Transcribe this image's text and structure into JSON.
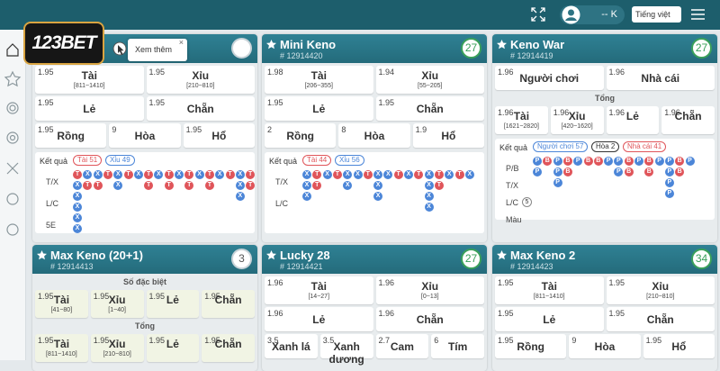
{
  "topbar": {
    "user": "-- K",
    "language": "Tiếng việt"
  },
  "logo": "123BET",
  "tooltip": "Xem thêm",
  "bead_colors": {
    "T": "#e0555a",
    "X": "#4c86d8",
    "P": "#4c86d8",
    "B": "#e0555a"
  },
  "cards": [
    {
      "timer": "",
      "timer_color": "#c9d3d8",
      "sections": [
        {
          "rows": [
            [
              {
                "odds": "1.95",
                "label": "Tài",
                "range": "[811~1410]"
              },
              {
                "odds": "1.95",
                "label": "Xỉu",
                "range": "[210~810]"
              }
            ],
            [
              {
                "odds": "1.95",
                "label": "Lẻ"
              },
              {
                "odds": "1.95",
                "label": "Chẵn"
              }
            ],
            [
              {
                "odds": "1.95",
                "label": "Rồng"
              },
              {
                "odds": "9",
                "label": "Hòa"
              },
              {
                "odds": "1.95",
                "label": "Hổ"
              }
            ]
          ]
        }
      ],
      "results": {
        "label": "Kết quả",
        "tags": [
          {
            "text": "Tài 51",
            "color": "#e0555a"
          },
          {
            "text": "Xỉu 49",
            "color": "#4c86d8"
          }
        ],
        "row_labels": [
          "T/X",
          "L/C",
          "5E"
        ],
        "beads": [
          [
            "T",
            "X",
            "X",
            "X",
            "X",
            "X"
          ],
          [
            "X",
            "T"
          ],
          [
            "X",
            "T"
          ],
          [
            "T"
          ],
          [
            "X",
            "X"
          ],
          [
            "T"
          ],
          [
            "X"
          ],
          [
            "T",
            "T"
          ],
          [
            "X"
          ],
          [
            "T",
            "T"
          ],
          [
            "X"
          ],
          [
            "T",
            "T"
          ],
          [
            "X"
          ],
          [
            "T",
            "T"
          ],
          [
            "X"
          ],
          [
            "T"
          ],
          [
            "X",
            "X",
            "X"
          ],
          [
            "T",
            "T"
          ]
        ]
      }
    },
    {
      "title": "Mini Keno",
      "id": "# 12914420",
      "timer": "27",
      "timer_color": "#3aa05a",
      "sections": [
        {
          "rows": [
            [
              {
                "odds": "1.98",
                "label": "Tài",
                "range": "[206~355]"
              },
              {
                "odds": "1.94",
                "label": "Xỉu",
                "range": "[55~205]"
              }
            ],
            [
              {
                "odds": "1.95",
                "label": "Lẻ"
              },
              {
                "odds": "1.95",
                "label": "Chẵn"
              }
            ],
            [
              {
                "odds": "2",
                "label": "Rồng"
              },
              {
                "odds": "8",
                "label": "Hòa"
              },
              {
                "odds": "1.9",
                "label": "Hổ"
              }
            ]
          ]
        }
      ],
      "results": {
        "label": "Kết quả",
        "tags": [
          {
            "text": "Tài 44",
            "color": "#e0555a"
          },
          {
            "text": "Xỉu 56",
            "color": "#4c86d8"
          }
        ],
        "row_labels": [
          "T/X",
          "L/C"
        ],
        "beads": [
          [
            "X",
            "X",
            "X"
          ],
          [
            "T",
            "T"
          ],
          [
            "X"
          ],
          [
            "T"
          ],
          [
            "X",
            "X"
          ],
          [
            "X"
          ],
          [
            "T"
          ],
          [
            "X",
            "X",
            "X"
          ],
          [
            "X"
          ],
          [
            "T"
          ],
          [
            "X"
          ],
          [
            "T"
          ],
          [
            "X",
            "X",
            "X",
            "X"
          ],
          [
            "T",
            "T"
          ],
          [
            "X"
          ],
          [
            "T"
          ],
          [
            "X"
          ]
        ]
      }
    },
    {
      "title": "Keno War",
      "id": "# 12914419",
      "timer": "27",
      "timer_color": "#3aa05a",
      "sections": [
        {
          "rows": [
            [
              {
                "odds": "1.96",
                "label": "Người chơi"
              },
              {
                "odds": "1.96",
                "label": "Nhà cái"
              }
            ]
          ]
        },
        {
          "heading": "Tổng",
          "rows": [
            [
              {
                "odds": "1.96",
                "label": "Tài",
                "range": "[1621~2820]"
              },
              {
                "odds": "1.96",
                "label": "Xỉu",
                "range": "[420~1620]"
              },
              {
                "odds": "1.96",
                "label": "Lẻ"
              },
              {
                "odds": "1.96",
                "label": "Chẵn"
              }
            ]
          ]
        }
      ],
      "results": {
        "label": "Kết quả",
        "tags": [
          {
            "text": "Người chơi 57",
            "color": "#4c86d8"
          },
          {
            "text": "Hòa 2",
            "color": "#333333"
          },
          {
            "text": "Nhà cái 41",
            "color": "#e0555a"
          }
        ],
        "row_labels": [
          "P/B",
          "T/X",
          "L/C",
          "Màu"
        ],
        "badge": "5",
        "beads": [
          [
            "P",
            "P"
          ],
          [
            "B"
          ],
          [
            "P",
            "P",
            "P"
          ],
          [
            "B",
            "B"
          ],
          [
            "P"
          ],
          [
            "B"
          ],
          [
            "B"
          ],
          [
            "P"
          ],
          [
            "P",
            "P"
          ],
          [
            "B",
            "B"
          ],
          [
            "P"
          ],
          [
            "B",
            "B"
          ],
          [
            "P"
          ],
          [
            "P",
            "P",
            "P",
            "P"
          ],
          [
            "B",
            "B"
          ],
          [
            "P"
          ]
        ]
      }
    },
    {
      "title": "Max Keno (20+1)",
      "id": "# 12914413",
      "timer": "3",
      "timer_color": "#c9d3d8",
      "sections": [
        {
          "heading": "Số đặc biệt",
          "cell_bg": "#f1f4e4",
          "rows": [
            [
              {
                "odds": "1.95",
                "label": "Tài",
                "range": "[41~80]"
              },
              {
                "odds": "1.95",
                "label": "Xỉu",
                "range": "[1~40]"
              },
              {
                "odds": "1.95",
                "label": "Lẻ"
              },
              {
                "odds": "1.95",
                "label": "Chẵn"
              }
            ]
          ]
        },
        {
          "heading": "Tổng",
          "cell_bg": "#f1f4e4",
          "rows": [
            [
              {
                "odds": "1.95",
                "label": "Tài",
                "range": "[811~1410]"
              },
              {
                "odds": "1.95",
                "label": "Xỉu",
                "range": "[210~810]"
              },
              {
                "odds": "1.95",
                "label": "Lẻ"
              },
              {
                "odds": "1.95",
                "label": "Chẵn"
              }
            ]
          ]
        }
      ]
    },
    {
      "title": "Lucky 28",
      "id": "# 12914421",
      "timer": "27",
      "timer_color": "#3aa05a",
      "sections": [
        {
          "rows": [
            [
              {
                "odds": "1.96",
                "label": "Tài",
                "range": "[14~27]"
              },
              {
                "odds": "1.96",
                "label": "Xỉu",
                "range": "[0~13]"
              }
            ],
            [
              {
                "odds": "1.96",
                "label": "Lẻ"
              },
              {
                "odds": "1.96",
                "label": "Chẵn"
              }
            ],
            [
              {
                "odds": "3.5",
                "label": "Xanh lá"
              },
              {
                "odds": "3.5",
                "label": "Xanh dương"
              },
              {
                "odds": "2.7",
                "label": "Cam"
              },
              {
                "odds": "6",
                "label": "Tím"
              }
            ]
          ]
        }
      ]
    },
    {
      "title": "Max Keno 2",
      "id": "# 12914423",
      "timer": "34",
      "timer_color": "#3aa05a",
      "sections": [
        {
          "rows": [
            [
              {
                "odds": "1.95",
                "label": "Tài",
                "range": "[811~1410]"
              },
              {
                "odds": "1.95",
                "label": "Xỉu",
                "range": "[210~810]"
              }
            ],
            [
              {
                "odds": "1.95",
                "label": "Lẻ"
              },
              {
                "odds": "1.95",
                "label": "Chẵn"
              }
            ],
            [
              {
                "odds": "1.95",
                "label": "Rồng"
              },
              {
                "odds": "9",
                "label": "Hòa"
              },
              {
                "odds": "1.95",
                "label": "Hổ"
              }
            ]
          ]
        }
      ]
    }
  ]
}
